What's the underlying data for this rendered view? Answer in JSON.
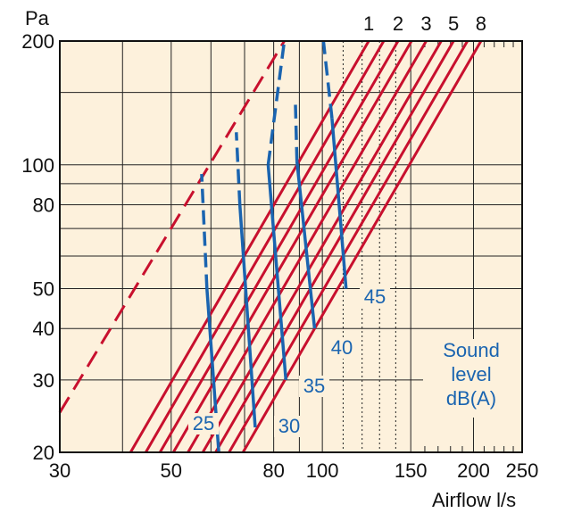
{
  "chart_data": {
    "type": "line",
    "x_scale": "log",
    "y_scale": "log",
    "xlim": [
      30,
      250
    ],
    "ylim": [
      20,
      200
    ],
    "xlabel": "Airflow l/s",
    "ylabel": "Pa",
    "x_ticks": [
      30,
      50,
      80,
      100,
      150,
      200,
      250
    ],
    "y_ticks": [
      20,
      30,
      40,
      50,
      80,
      100,
      200
    ],
    "grid": true,
    "colors": {
      "background": "#fdf1dc",
      "grid": "#222222",
      "damper_lines": "#c8102e",
      "sound_lines": "#1a64b0"
    },
    "damper_setting_labels": [
      "1",
      "2",
      "3",
      "5",
      "8"
    ],
    "damper_lines": [
      {
        "points": [
          [
            41.5,
            20
          ],
          [
            123.7,
            200
          ]
        ]
      },
      {
        "points": [
          [
            44.5,
            20
          ],
          [
            132.5,
            200
          ]
        ]
      },
      {
        "points": [
          [
            47.5,
            20
          ],
          [
            141.5,
            200
          ]
        ]
      },
      {
        "points": [
          [
            50.5,
            20
          ],
          [
            150.5,
            200
          ]
        ]
      },
      {
        "points": [
          [
            54,
            20
          ],
          [
            161,
            200
          ]
        ]
      },
      {
        "points": [
          [
            57.8,
            20
          ],
          [
            172.5,
            200
          ]
        ]
      },
      {
        "points": [
          [
            61.3,
            20
          ],
          [
            182.5,
            200
          ]
        ]
      },
      {
        "points": [
          [
            65.2,
            20
          ],
          [
            194.5,
            200
          ]
        ]
      },
      {
        "points": [
          [
            69.5,
            20
          ],
          [
            207,
            200
          ]
        ]
      }
    ],
    "extrapolated_line": {
      "points": [
        [
          30,
          25
        ],
        [
          84,
          200
        ]
      ]
    },
    "sound_series": [
      {
        "label": "25",
        "solid": [
          [
            62.2,
            20
          ],
          [
            58.9,
            50
          ]
        ],
        "dashed": [
          [
            58.9,
            50
          ],
          [
            57.5,
            95
          ]
        ]
      },
      {
        "label": "30",
        "solid": [
          [
            73.5,
            23
          ],
          [
            68.5,
            80
          ]
        ],
        "dashed": [
          [
            68.5,
            80
          ],
          [
            67.4,
            120
          ]
        ]
      },
      {
        "label": "35",
        "solid": [
          [
            84.6,
            30
          ],
          [
            78,
            100
          ]
        ],
        "dashed": [
          [
            78,
            100
          ],
          [
            84,
            200
          ]
        ]
      },
      {
        "label": "40",
        "solid": [
          [
            96.5,
            40
          ],
          [
            89,
            102
          ]
        ],
        "dashed": [
          [
            89,
            102
          ],
          [
            88.4,
            140
          ]
        ]
      },
      {
        "label": "45",
        "solid": [
          [
            111.5,
            50
          ],
          [
            104.5,
            130
          ]
        ],
        "dashed": [
          [
            104.5,
            130
          ],
          [
            100.5,
            200
          ]
        ]
      }
    ],
    "annotation": [
      "Sound",
      "level",
      "dB(A)"
    ]
  }
}
